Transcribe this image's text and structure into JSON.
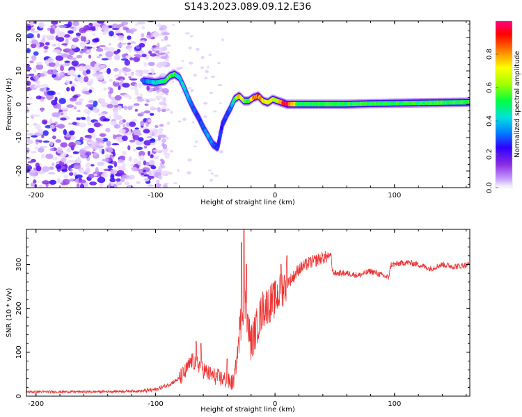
{
  "figure": {
    "title": "S143.2023.089.09.12.E36"
  },
  "chart_data": [
    {
      "type": "heatmap",
      "name": "spectrogram",
      "xlabel": "Height of straight line (km)",
      "ylabel": "Frequency (Hz)",
      "xlim": [
        -208,
        163
      ],
      "ylim": [
        -25,
        25
      ],
      "xticks": [
        -200,
        -100,
        0,
        100
      ],
      "yticks": [
        -20,
        -10,
        0,
        10,
        20
      ],
      "colorbar": {
        "label": "Normalized spectral amplitude",
        "range": [
          0.0,
          1.0
        ],
        "ticks": [
          0.0,
          0.2,
          0.4,
          0.6,
          0.8
        ],
        "colormap": [
          "#ffffff",
          "#c8a0ff",
          "#8a2be2",
          "#3000ff",
          "#0080ff",
          "#00e0e0",
          "#00ff40",
          "#a0ff00",
          "#ffff00",
          "#ff8000",
          "#ff0000",
          "#ff0080"
        ]
      },
      "noise_region": {
        "x_range": [
          -208,
          -90
        ],
        "y_range": [
          -25,
          25
        ]
      },
      "ridge": {
        "x": [
          -110,
          -100,
          -92,
          -88,
          -84,
          -80,
          -76,
          -72,
          -68,
          -64,
          -60,
          -56,
          -52,
          -48,
          -44,
          -40,
          -37,
          -34,
          -30,
          -26,
          -22,
          -18,
          -14,
          -10,
          -6,
          -2,
          2,
          6,
          10,
          20,
          40,
          60,
          80,
          100,
          120,
          140,
          163
        ],
        "y": [
          7,
          6.5,
          7,
          8.5,
          9,
          8,
          5,
          1.5,
          -1.5,
          -4,
          -7,
          -9.5,
          -12,
          -13,
          -6,
          -3,
          -1,
          1.5,
          2.5,
          1,
          1,
          2,
          2.5,
          1,
          0.5,
          1.5,
          1,
          0.5,
          0,
          0,
          0,
          0,
          0.2,
          0.3,
          0.4,
          0.5,
          0.6
        ],
        "amp": [
          0.35,
          0.45,
          0.5,
          0.6,
          0.55,
          0.45,
          0.45,
          0.4,
          0.35,
          0.3,
          0.35,
          0.4,
          0.35,
          0.3,
          0.3,
          0.3,
          0.35,
          0.5,
          0.75,
          0.6,
          0.55,
          0.8,
          0.85,
          0.7,
          0.75,
          0.7,
          0.65,
          0.85,
          0.95,
          0.55,
          0.55,
          0.55,
          0.55,
          0.55,
          0.55,
          0.55,
          0.55
        ]
      }
    },
    {
      "type": "line",
      "name": "snr",
      "xlabel": "Height of straight line (km)",
      "ylabel": "SNR (10 * v/v)",
      "xlim": [
        -208,
        163
      ],
      "ylim": [
        0,
        380
      ],
      "xticks": [
        -200,
        -100,
        0,
        100
      ],
      "yticks": [
        0,
        100,
        200,
        300
      ],
      "color": "#ee3333",
      "series": [
        {
          "x": [
            -208,
            -150,
            -110,
            -100,
            -90,
            -80,
            -75,
            -70,
            -65,
            -60,
            -55,
            -50,
            -45,
            -40,
            -35,
            -32,
            -30,
            -28,
            -26,
            -24,
            -22,
            -20,
            -15,
            -10,
            -5,
            0,
            5,
            10,
            15,
            20,
            30,
            40,
            47,
            48,
            50,
            60,
            70,
            80,
            90,
            95,
            97,
            100,
            110,
            120,
            130,
            140,
            150,
            163
          ],
          "y": [
            10,
            10,
            12,
            15,
            25,
            40,
            55,
            80,
            75,
            60,
            50,
            45,
            40,
            35,
            30,
            80,
            140,
            180,
            220,
            200,
            150,
            120,
            160,
            200,
            210,
            220,
            240,
            260,
            270,
            290,
            305,
            315,
            320,
            285,
            280,
            280,
            275,
            285,
            275,
            270,
            300,
            300,
            305,
            300,
            290,
            300,
            295,
            300
          ]
        }
      ],
      "spikes": [
        {
          "x": -66,
          "y": 125
        },
        {
          "x": -62,
          "y": 120
        },
        {
          "x": -40,
          "y": 85
        },
        {
          "x": -28,
          "y": 350
        },
        {
          "x": -26,
          "y": 380
        },
        {
          "x": -24,
          "y": 300
        },
        {
          "x": 5,
          "y": 300
        },
        {
          "x": 10,
          "y": 320
        }
      ]
    }
  ]
}
